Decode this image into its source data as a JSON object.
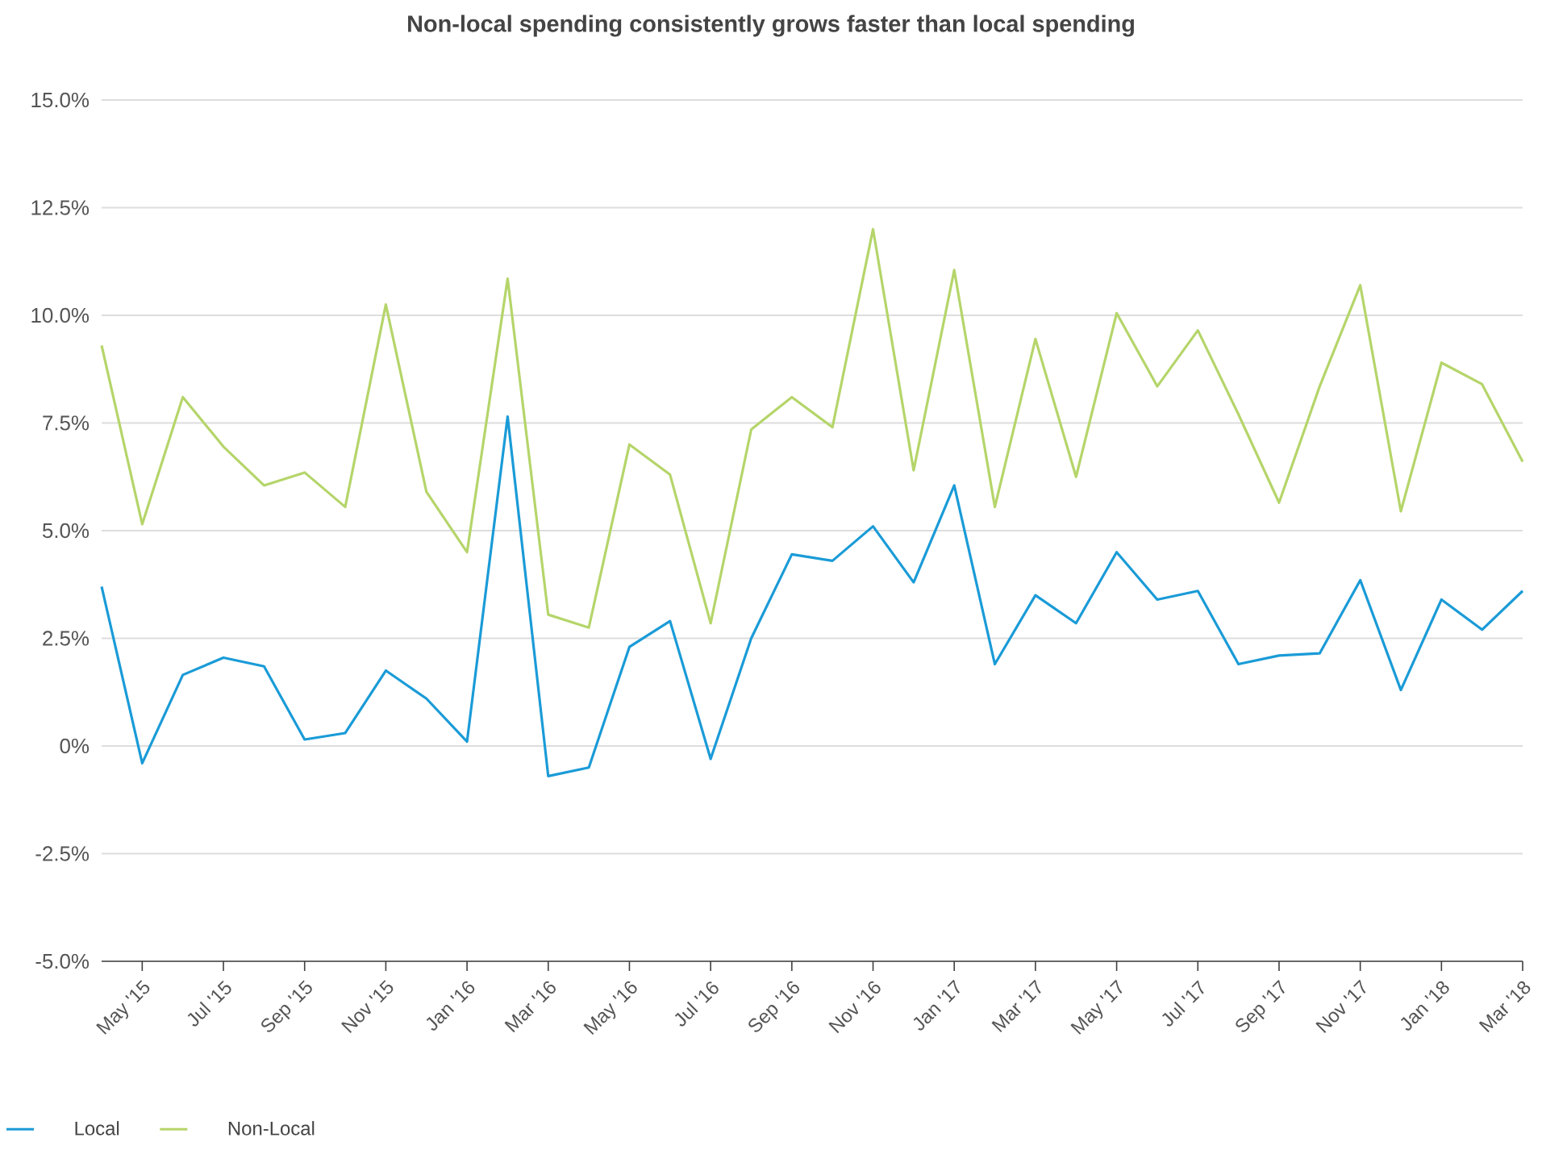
{
  "chart_data": {
    "type": "line",
    "title": "Non-local spending consistently grows faster than local spending",
    "categories": [
      null,
      "May '15",
      null,
      "Jul '15",
      null,
      "Sep '15",
      null,
      "Nov '15",
      null,
      "Jan '16",
      null,
      "Mar '16",
      null,
      "May '16",
      null,
      "Jul '16",
      null,
      "Sep '16",
      null,
      "Nov '16",
      null,
      "Jan '17",
      null,
      "Mar '17",
      null,
      "May '17",
      null,
      "Jul '17",
      null,
      "Sep '17",
      null,
      "Nov '17",
      null,
      "Jan '18",
      null,
      "Mar '18"
    ],
    "series": [
      {
        "name": "Local",
        "color": "#1a9bd7",
        "values": [
          3.7,
          -0.4,
          1.65,
          2.05,
          1.85,
          0.15,
          0.3,
          1.75,
          1.1,
          0.1,
          7.65,
          -0.7,
          -0.5,
          2.3,
          2.9,
          -0.3,
          2.5,
          4.45,
          4.3,
          5.1,
          3.8,
          6.05,
          1.9,
          3.5,
          2.85,
          4.5,
          3.4,
          3.6,
          1.9,
          2.1,
          2.15,
          3.85,
          1.3,
          3.4,
          2.7,
          3.6
        ]
      },
      {
        "name": "Non-Local",
        "color": "#b5d56a",
        "values": [
          9.3,
          5.15,
          8.1,
          6.95,
          6.05,
          6.35,
          5.55,
          10.25,
          5.9,
          4.5,
          10.85,
          3.05,
          2.75,
          7.0,
          6.3,
          2.85,
          7.35,
          8.1,
          7.4,
          12.0,
          6.4,
          11.05,
          5.55,
          9.45,
          6.25,
          10.05,
          8.35,
          9.65,
          7.7,
          5.65,
          8.35,
          10.7,
          5.45,
          8.9,
          8.4,
          6.6
        ]
      }
    ],
    "ylim": [
      -5,
      15
    ],
    "yticks": [
      {
        "value": -5,
        "label": "-5.0%"
      },
      {
        "value": -2.5,
        "label": "-2.5%"
      },
      {
        "value": 0,
        "label": "0%"
      },
      {
        "value": 2.5,
        "label": "2.5%"
      },
      {
        "value": 5,
        "label": "5.0%"
      },
      {
        "value": 7.5,
        "label": "7.5%"
      },
      {
        "value": 10,
        "label": "10.0%"
      },
      {
        "value": 12.5,
        "label": "12.5%"
      },
      {
        "value": 15,
        "label": "15.0%"
      }
    ],
    "grid": "y",
    "legend": "bottom left",
    "marker": "none",
    "line_style": "solid"
  }
}
